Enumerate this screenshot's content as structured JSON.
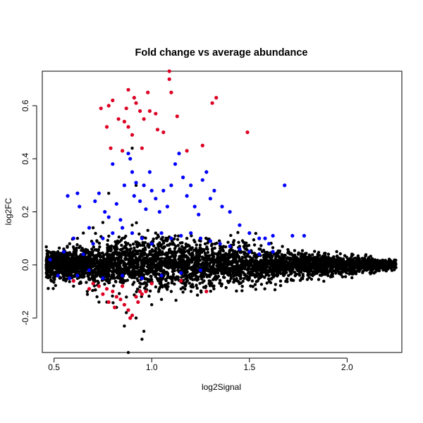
{
  "chart_data": {
    "type": "scatter",
    "title": "Fold change vs average abundance",
    "xlabel": "log2Signal",
    "ylabel": "log2FC",
    "xlim": [
      0.44,
      2.28
    ],
    "ylim": [
      -0.33,
      0.73
    ],
    "x_ticks": [
      0.5,
      1.0,
      1.5,
      2.0
    ],
    "x_tick_labels": [
      "0.5",
      "1.0",
      "1.5",
      "2.0"
    ],
    "y_ticks": [
      -0.2,
      0.0,
      0.2,
      0.4,
      0.6
    ],
    "y_tick_labels": [
      "-0.2",
      "0.0",
      "0.2",
      "0.4",
      "0.6"
    ],
    "grid": false,
    "legend": "none",
    "colors": {
      "not_significant": "#000000",
      "significant": "#0000ff",
      "highly_significant": "#dd0022"
    },
    "series": [
      {
        "color": "#000000",
        "points": [
          [
            0.46,
            0.0
          ],
          [
            0.47,
            0.02
          ],
          [
            0.48,
            -0.02
          ],
          [
            0.5,
            0.03
          ],
          [
            0.5,
            -0.03
          ],
          [
            0.52,
            0.05
          ],
          [
            0.53,
            -0.05
          ],
          [
            0.55,
            0.06
          ],
          [
            0.56,
            -0.06
          ],
          [
            0.58,
            0.08
          ],
          [
            0.6,
            -0.08
          ],
          [
            0.62,
            0.1
          ],
          [
            0.63,
            -0.07
          ],
          [
            0.65,
            0.12
          ],
          [
            0.67,
            -0.1
          ],
          [
            0.7,
            0.14
          ],
          [
            0.72,
            -0.12
          ],
          [
            0.75,
            0.16
          ],
          [
            0.77,
            -0.14
          ],
          [
            0.8,
            0.12
          ],
          [
            0.82,
            -0.16
          ],
          [
            0.85,
            0.1
          ],
          [
            0.87,
            -0.18
          ],
          [
            0.88,
            -0.33
          ],
          [
            0.9,
            0.15
          ],
          [
            0.92,
            -0.2
          ],
          [
            0.95,
            -0.28
          ],
          [
            0.98,
            0.13
          ],
          [
            1.0,
            -0.15
          ],
          [
            1.02,
            0.12
          ],
          [
            1.05,
            -0.13
          ],
          [
            1.08,
            0.1
          ],
          [
            1.1,
            -0.1
          ],
          [
            1.12,
            0.11
          ],
          [
            1.15,
            -0.09
          ],
          [
            1.18,
            0.1
          ],
          [
            1.2,
            -0.08
          ],
          [
            1.25,
            0.09
          ],
          [
            1.3,
            -0.07
          ],
          [
            1.35,
            0.08
          ],
          [
            1.4,
            -0.06
          ],
          [
            1.45,
            0.07
          ],
          [
            1.5,
            -0.05
          ],
          [
            1.55,
            0.06
          ],
          [
            1.6,
            -0.04
          ],
          [
            1.65,
            0.05
          ],
          [
            1.7,
            -0.04
          ],
          [
            1.75,
            0.04
          ],
          [
            1.8,
            -0.03
          ],
          [
            1.85,
            0.04
          ],
          [
            1.9,
            -0.03
          ],
          [
            1.95,
            0.03
          ],
          [
            2.0,
            -0.02
          ],
          [
            2.05,
            0.02
          ],
          [
            2.1,
            -0.02
          ],
          [
            2.15,
            0.01
          ],
          [
            2.2,
            -0.01
          ],
          [
            2.25,
            -0.01
          ],
          [
            0.9,
            0.44
          ],
          [
            0.92,
            0.3
          ],
          [
            0.78,
            0.27
          ],
          [
            0.73,
            -0.14
          ],
          [
            0.96,
            -0.25
          ],
          [
            0.86,
            -0.23
          ]
        ],
        "band": {
          "x_range": [
            0.46,
            2.25
          ],
          "note": "dense cloud of black points centred at log2FC 0, spread widest near log2Signal 0.8-1.0 and narrowing toward 2.2"
        }
      },
      {
        "color": "#0000ff",
        "points": [
          [
            0.57,
            0.26
          ],
          [
            0.62,
            0.27
          ],
          [
            0.63,
            0.22
          ],
          [
            0.68,
            0.14
          ],
          [
            0.71,
            0.24
          ],
          [
            0.73,
            0.27
          ],
          [
            0.76,
            0.2
          ],
          [
            0.78,
            0.18
          ],
          [
            0.8,
            0.38
          ],
          [
            0.82,
            0.23
          ],
          [
            0.84,
            0.17
          ],
          [
            0.86,
            0.3
          ],
          [
            0.88,
            0.42
          ],
          [
            0.89,
            0.4
          ],
          [
            0.9,
            0.35
          ],
          [
            0.91,
            0.26
          ],
          [
            0.92,
            0.31
          ],
          [
            0.94,
            0.24
          ],
          [
            0.96,
            0.3
          ],
          [
            0.97,
            0.21
          ],
          [
            0.99,
            0.35
          ],
          [
            1.0,
            0.28
          ],
          [
            1.02,
            0.25
          ],
          [
            1.04,
            0.2
          ],
          [
            1.06,
            0.28
          ],
          [
            1.08,
            0.22
          ],
          [
            1.1,
            0.3
          ],
          [
            1.12,
            0.38
          ],
          [
            1.14,
            0.42
          ],
          [
            1.16,
            0.33
          ],
          [
            1.18,
            0.26
          ],
          [
            1.2,
            0.3
          ],
          [
            1.22,
            0.22
          ],
          [
            1.24,
            0.19
          ],
          [
            1.26,
            0.32
          ],
          [
            1.28,
            0.35
          ],
          [
            1.3,
            0.25
          ],
          [
            1.32,
            0.28
          ],
          [
            1.36,
            0.22
          ],
          [
            1.4,
            0.2
          ],
          [
            1.45,
            0.15
          ],
          [
            1.5,
            0.12
          ],
          [
            1.55,
            0.1
          ],
          [
            1.6,
            0.08
          ],
          [
            1.62,
            0.11
          ],
          [
            1.68,
            0.3
          ],
          [
            1.72,
            0.11
          ],
          [
            1.78,
            0.11
          ],
          [
            0.55,
            0.05
          ],
          [
            0.6,
            0.1
          ],
          [
            0.65,
            0.04
          ],
          [
            0.7,
            0.08
          ],
          [
            0.75,
            0.1
          ],
          [
            0.8,
            0.12
          ],
          [
            0.85,
            0.14
          ],
          [
            0.9,
            0.12
          ],
          [
            0.95,
            0.1
          ],
          [
            1.0,
            0.08
          ],
          [
            1.05,
            0.12
          ],
          [
            1.1,
            0.1
          ],
          [
            1.15,
            0.11
          ],
          [
            1.2,
            0.12
          ],
          [
            1.25,
            0.1
          ],
          [
            1.3,
            0.09
          ],
          [
            1.35,
            0.08
          ],
          [
            1.4,
            0.07
          ],
          [
            1.45,
            0.06
          ],
          [
            1.5,
            0.05
          ],
          [
            1.55,
            0.04
          ],
          [
            1.58,
            0.1
          ],
          [
            1.62,
            0.05
          ],
          [
            0.48,
            0.02
          ],
          [
            0.52,
            -0.04
          ],
          [
            0.58,
            -0.05
          ],
          [
            0.62,
            -0.04
          ],
          [
            0.68,
            -0.02
          ],
          [
            0.75,
            -0.05
          ],
          [
            0.85,
            -0.04
          ],
          [
            0.95,
            -0.05
          ],
          [
            1.05,
            -0.04
          ],
          [
            1.15,
            -0.03
          ],
          [
            1.25,
            -0.02
          ]
        ]
      },
      {
        "color": "#dd0022",
        "points": [
          [
            1.09,
            0.73
          ],
          [
            1.09,
            0.7
          ],
          [
            0.88,
            0.66
          ],
          [
            1.1,
            0.65
          ],
          [
            0.91,
            0.63
          ],
          [
            0.98,
            0.65
          ],
          [
            1.33,
            0.63
          ],
          [
            0.8,
            0.62
          ],
          [
            0.78,
            0.6
          ],
          [
            0.92,
            0.61
          ],
          [
            1.31,
            0.61
          ],
          [
            0.74,
            0.59
          ],
          [
            0.87,
            0.59
          ],
          [
            0.94,
            0.58
          ],
          [
            0.99,
            0.58
          ],
          [
            1.02,
            0.57
          ],
          [
            1.13,
            0.56
          ],
          [
            0.96,
            0.55
          ],
          [
            0.83,
            0.55
          ],
          [
            0.86,
            0.54
          ],
          [
            0.77,
            0.52
          ],
          [
            0.88,
            0.52
          ],
          [
            1.03,
            0.51
          ],
          [
            1.06,
            0.5
          ],
          [
            0.9,
            0.49
          ],
          [
            1.49,
            0.5
          ],
          [
            1.26,
            0.45
          ],
          [
            0.95,
            0.44
          ],
          [
            0.79,
            0.44
          ],
          [
            0.85,
            0.43
          ],
          [
            1.18,
            0.43
          ],
          [
            0.6,
            -0.06
          ],
          [
            0.7,
            -0.07
          ],
          [
            0.73,
            -0.08
          ],
          [
            0.77,
            -0.09
          ],
          [
            0.8,
            -0.1
          ],
          [
            0.82,
            -0.12
          ],
          [
            0.84,
            -0.13
          ],
          [
            0.86,
            -0.15
          ],
          [
            0.88,
            -0.17
          ],
          [
            0.9,
            -0.19
          ],
          [
            0.92,
            -0.12
          ],
          [
            0.94,
            -0.1
          ],
          [
            0.85,
            -0.08
          ],
          [
            0.95,
            -0.11
          ],
          [
            0.97,
            -0.1
          ],
          [
            0.78,
            -0.14
          ],
          [
            0.81,
            -0.16
          ],
          [
            0.89,
            -0.2
          ],
          [
            0.75,
            -0.11
          ],
          [
            0.68,
            -0.09
          ],
          [
            0.93,
            -0.14
          ],
          [
            1.0,
            -0.07
          ],
          [
            1.28,
            -0.1
          ],
          [
            1.15,
            -0.06
          ]
        ]
      }
    ]
  }
}
